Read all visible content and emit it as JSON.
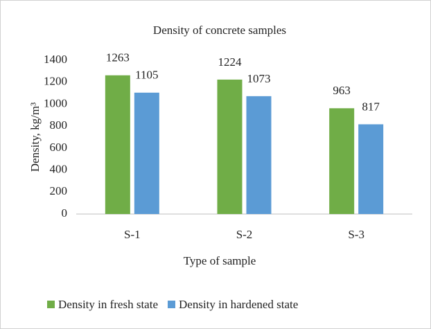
{
  "chart_data": {
    "type": "bar",
    "title": "Density of concrete samples",
    "x_label": "Type of sample",
    "y_label": "Density, kg/m³",
    "categories": [
      "S-1",
      "S-2",
      "S-3"
    ],
    "series": [
      {
        "name": "Density in fresh state",
        "color": "#70ad47",
        "values": [
          1263,
          1224,
          963
        ]
      },
      {
        "name": "Density in hardened state",
        "color": "#5b9bd5",
        "values": [
          1105,
          1073,
          817
        ]
      }
    ],
    "ylim": [
      0,
      1400
    ],
    "yticks": [
      0,
      200,
      400,
      600,
      800,
      1000,
      1200,
      1400
    ],
    "grid": false,
    "legend": "bottom"
  }
}
